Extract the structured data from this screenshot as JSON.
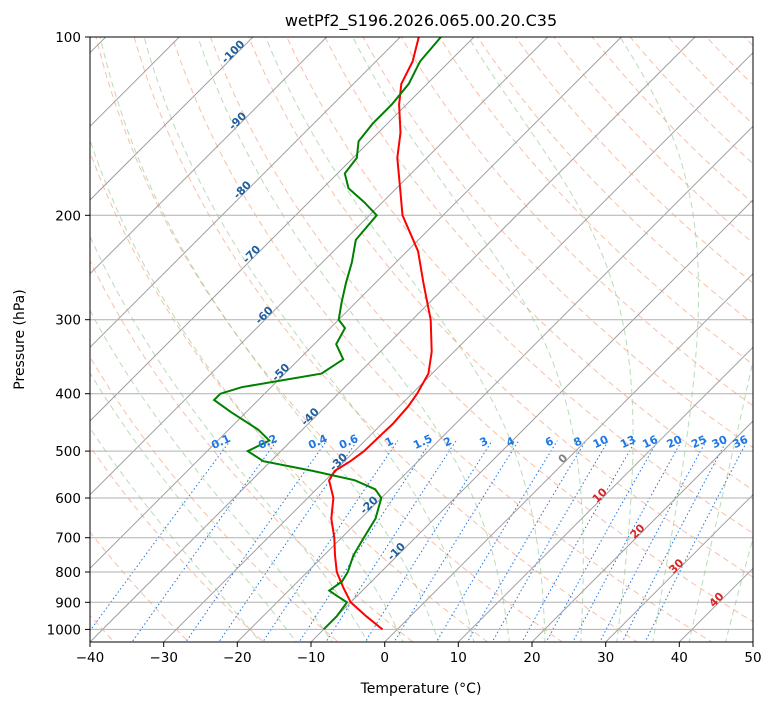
{
  "chart_data": {
    "type": "skew-t",
    "title": "wetPf2_S196.2026.065.00.20.C35",
    "xlabel": "Temperature (°C)",
    "ylabel": "Pressure (hPa)",
    "xlim": [
      -40,
      50
    ],
    "ylim": [
      1050,
      100
    ],
    "y_scale": "log",
    "x_ticks": [
      "-40",
      "-30",
      "-20",
      "-10",
      "0",
      "10",
      "20",
      "30",
      "40",
      "50"
    ],
    "y_ticks": [
      "100",
      "200",
      "300",
      "400",
      "500",
      "600",
      "700",
      "800",
      "900",
      "1000"
    ],
    "grid": true,
    "series": [
      {
        "color": "#ff0000",
        "points": [
          [
            1000,
            -2.0
          ],
          [
            950,
            -6.0
          ],
          [
            900,
            -10.0
          ],
          [
            850,
            -13.0
          ],
          [
            800,
            -16.0
          ],
          [
            750,
            -18.5
          ],
          [
            700,
            -21.0
          ],
          [
            650,
            -24.0
          ],
          [
            600,
            -26.5
          ],
          [
            560,
            -29.5
          ],
          [
            540,
            -30.0
          ],
          [
            520,
            -29.2
          ],
          [
            500,
            -28.7
          ],
          [
            470,
            -28.6
          ],
          [
            450,
            -28.5
          ],
          [
            420,
            -28.8
          ],
          [
            400,
            -29.3
          ],
          [
            370,
            -30.5
          ],
          [
            340,
            -33.0
          ],
          [
            300,
            -37.5
          ],
          [
            260,
            -43.5
          ],
          [
            230,
            -48.5
          ],
          [
            200,
            -55.5
          ],
          [
            180,
            -59.5
          ],
          [
            160,
            -64.0
          ],
          [
            145,
            -67.0
          ],
          [
            130,
            -71.0
          ],
          [
            120,
            -73.5
          ],
          [
            110,
            -75.0
          ],
          [
            100,
            -77.5
          ]
        ]
      },
      {
        "color": "#008000",
        "points": [
          [
            1000,
            -10.0
          ],
          [
            950,
            -10.0
          ],
          [
            900,
            -10.5
          ],
          [
            880,
            -12.5
          ],
          [
            860,
            -14.5
          ],
          [
            830,
            -14.0
          ],
          [
            800,
            -14.5
          ],
          [
            750,
            -16.0
          ],
          [
            700,
            -17.0
          ],
          [
            650,
            -18.0
          ],
          [
            600,
            -20.0
          ],
          [
            580,
            -22.0
          ],
          [
            560,
            -26.0
          ],
          [
            540,
            -33.0
          ],
          [
            520,
            -41.0
          ],
          [
            500,
            -44.5
          ],
          [
            480,
            -43.0
          ],
          [
            460,
            -46.0
          ],
          [
            430,
            -52.0
          ],
          [
            410,
            -56.0
          ],
          [
            400,
            -56.0
          ],
          [
            390,
            -54.0
          ],
          [
            370,
            -45.0
          ],
          [
            350,
            -44.0
          ],
          [
            330,
            -47.0
          ],
          [
            310,
            -48.0
          ],
          [
            300,
            -50.0
          ],
          [
            280,
            -52.0
          ],
          [
            260,
            -54.0
          ],
          [
            240,
            -56.0
          ],
          [
            220,
            -58.5
          ],
          [
            200,
            -59.0
          ],
          [
            190,
            -62.5
          ],
          [
            180,
            -66.5
          ],
          [
            170,
            -69.0
          ],
          [
            160,
            -69.5
          ],
          [
            150,
            -71.5
          ],
          [
            140,
            -72.0
          ],
          [
            130,
            -72.0
          ],
          [
            120,
            -72.5
          ],
          [
            110,
            -74.0
          ],
          [
            100,
            -74.5
          ]
        ]
      }
    ],
    "mixing_ratio_labels": [
      "0.1",
      "0.2",
      "0.4",
      "0.6",
      "1",
      "1.5",
      "2",
      "3",
      "4",
      "6",
      "8",
      "10",
      "13",
      "16",
      "20",
      "25",
      "30",
      "36"
    ],
    "dry_adiabat_labels": [
      "-100",
      "-90",
      "-80",
      "-70",
      "-60",
      "-50",
      "-40",
      "-30",
      "-20",
      "-10"
    ],
    "moist_adiabat_labels": [
      "0",
      "10",
      "20",
      "30",
      "40"
    ],
    "colors": {
      "temperature": "#ff0000",
      "dewpoint": "#008000",
      "dry_adiabat": "#f4a582",
      "moist_adiabat": "#7fbf7b",
      "mixing_ratio": "#1f77e4",
      "dry_label": "#1f5f9f",
      "moist_label": "#d62728",
      "isotherm": "#a0a0a0",
      "grid": "#b0b0b0"
    }
  }
}
